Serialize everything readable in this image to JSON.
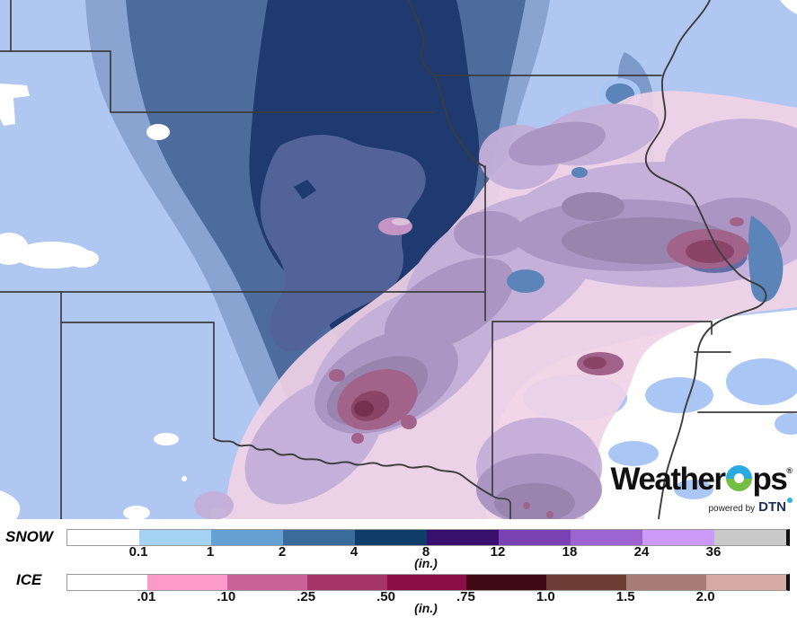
{
  "map": {
    "palette": {
      "snow_light": "#b0c7f2",
      "snow_med": "#8aa4d2",
      "snow_steel": "#4e6b9e",
      "snow_navy": "#1e3a6e",
      "snow_interior": "#52639a",
      "no_snow": "#ffffff",
      "patch_sky": "#a9c6f4",
      "patch_steel": "#5b84b8",
      "patch_slate": "#7d99c9",
      "ice_pale": "#f0d3e6",
      "ice_lavender": "#c4afd9",
      "ice_mauve": "#ab95c3",
      "ice_graypurple": "#9884ad",
      "ice_rose": "#a2638a",
      "ice_darkrose": "#8a4468",
      "ice_maroon": "#73304f",
      "ice_spot": "#c495c4",
      "ice_spot_light": "#dcc0dc",
      "border_line": "#3c3c3c",
      "logo_blue": "#29abe2",
      "logo_green": "#72bf44",
      "logo_dtn": "#1e2d5a",
      "logo_degree": "#2cb5d8"
    }
  },
  "logo": {
    "brand_part1": "Weather",
    "brand_part2": "ps",
    "registered": "®",
    "powered_by": "powered by",
    "dtn": "DTN"
  },
  "legends": [
    {
      "id": "snow",
      "label": "SNOW",
      "unit": "(in.)",
      "colors": [
        "#ffffff",
        "#a5d3f5",
        "#65a0d2",
        "#3a6b9b",
        "#0e3e68",
        "#390f6e",
        "#7a41b5",
        "#9c64d0",
        "#cc9af8",
        "#c9c9c9"
      ],
      "ticks": [
        "0.1",
        "1",
        "2",
        "4",
        "8",
        "12",
        "18",
        "24",
        "36"
      ]
    },
    {
      "id": "ice",
      "label": "ICE",
      "unit": "(in.)",
      "colors": [
        "#ffffff",
        "#fc9aca",
        "#c96397",
        "#a53468",
        "#8b0e47",
        "#420a14",
        "#6e3d36",
        "#a87c76",
        "#d6aba3"
      ],
      "ticks": [
        ".01",
        ".10",
        ".25",
        ".50",
        ".75",
        "1.0",
        "1.5",
        "2.0"
      ]
    }
  ]
}
